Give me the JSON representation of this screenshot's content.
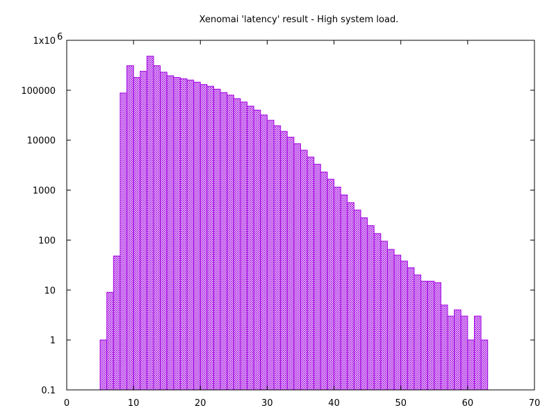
{
  "chart_data": {
    "type": "bar",
    "title": "Xenomai 'latency' result - High system load.",
    "xlabel": "",
    "ylabel": "",
    "y_scale": "log",
    "xlim": [
      0,
      70
    ],
    "ylim": [
      0.1,
      1000000
    ],
    "x_ticks": [
      0,
      10,
      20,
      30,
      40,
      50,
      60,
      70
    ],
    "x_tick_labels": [
      "0",
      "10",
      "20",
      "30",
      "40",
      "50",
      "60",
      "70"
    ],
    "y_ticks": [
      0.1,
      1,
      10,
      100,
      1000,
      10000,
      100000,
      1000000
    ],
    "y_tick_labels": [
      "0.1",
      "1",
      "10",
      "100",
      "1000",
      "10000",
      "100000",
      "1x10"
    ],
    "y_top_tick_exponent": "6",
    "grid": false,
    "bar_fill": "#c5a0e8",
    "bar_edge": "#a000e0",
    "bins": [
      5,
      6,
      7,
      8,
      9,
      10,
      11,
      12,
      13,
      14,
      15,
      16,
      17,
      18,
      19,
      20,
      21,
      22,
      23,
      24,
      25,
      26,
      27,
      28,
      29,
      30,
      31,
      32,
      33,
      34,
      35,
      36,
      37,
      38,
      39,
      40,
      41,
      42,
      43,
      44,
      45,
      46,
      47,
      48,
      49,
      50,
      51,
      52,
      53,
      54,
      55,
      56,
      57,
      58,
      59,
      60,
      61,
      62
    ],
    "counts": [
      1,
      9,
      48,
      88000,
      310000,
      180000,
      240000,
      480000,
      310000,
      230000,
      195000,
      180000,
      170000,
      160000,
      145000,
      130000,
      120000,
      105000,
      90000,
      80000,
      68000,
      58000,
      48000,
      40000,
      32000,
      25000,
      19500,
      15000,
      11500,
      8500,
      6300,
      4600,
      3300,
      2300,
      1650,
      1150,
      800,
      560,
      400,
      280,
      195,
      135,
      95,
      65,
      50,
      38,
      28,
      20,
      15,
      15,
      14,
      5,
      3,
      4,
      3,
      1,
      3,
      1
    ]
  }
}
